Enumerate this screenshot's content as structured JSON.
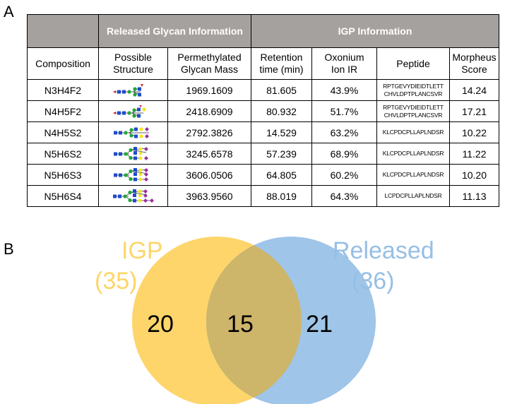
{
  "panels": {
    "a": "A",
    "b": "B"
  },
  "table": {
    "group_headers": {
      "released": "Released Glycan Information",
      "igp": "IGP Information"
    },
    "columns": {
      "composition": "Composition",
      "structure_1": "Possible",
      "structure_2": "Structure",
      "mass_1": "Permethylated",
      "mass_2": "Glycan Mass",
      "rt_1": "Retention",
      "rt_2": "time (min)",
      "ox_1": "Oxonium",
      "ox_2": "Ion IR",
      "peptide": "Peptide",
      "score_1": "Morpheus",
      "score_2": "Score"
    },
    "rows": [
      {
        "composition": "N3H4F2",
        "mass": "1969.1609",
        "rt": "81.605",
        "oxonium": "43.9%",
        "peptide_1": "RPTGEVYDIEIDTLETT",
        "peptide_2": "CHVLDPTPLANCSVR",
        "score": "14.24"
      },
      {
        "composition": "N4H5F2",
        "mass": "2418.6909",
        "rt": "80.932",
        "oxonium": "51.7%",
        "peptide_1": "RPTGEVYDIEIDTLETT",
        "peptide_2": "CHVLDPTPLANCSVR",
        "score": "17.21"
      },
      {
        "composition": "N4H5S2",
        "mass": "2792.3826",
        "rt": "14.529",
        "oxonium": "63.2%",
        "peptide_1": "KLCPDCPLLAPLNDSR",
        "peptide_2": "",
        "score": "10.22"
      },
      {
        "composition": "N5H6S2",
        "mass": "3245.6578",
        "rt": "57.239",
        "oxonium": "68.9%",
        "peptide_1": "KLCPDCPLLAPLNDSR",
        "peptide_2": "",
        "score": "11.22"
      },
      {
        "composition": "N5H6S3",
        "mass": "3606.0506",
        "rt": "64.805",
        "oxonium": "60.2%",
        "peptide_1": "KLCPDCPLLAPLNDSR",
        "peptide_2": "",
        "score": "10.20"
      },
      {
        "composition": "N5H6S4",
        "mass": "3963.9560",
        "rt": "88.019",
        "oxonium": "64.3%",
        "peptide_1": "LCPDCPLLAPLNDSR",
        "peptide_2": "",
        "score": "11.13"
      }
    ]
  },
  "venn": {
    "left": {
      "name": "IGP",
      "total": "(35)",
      "only": "20",
      "color": "#fdd56a"
    },
    "right": {
      "name": "Released",
      "total": "(36)",
      "only": "21",
      "color": "#9fc5e8"
    },
    "overlap": "15",
    "overlap_color": "#cdb56a",
    "left_text_color": "#fbd66a",
    "right_text_color": "#96bfe6"
  },
  "glyph_colors": {
    "glcnac": "#1f4bcd",
    "mannose": "#21a83a",
    "galactose": "#f6e61d",
    "fucose": "#d9232b",
    "sialic": "#9b2fa3"
  }
}
